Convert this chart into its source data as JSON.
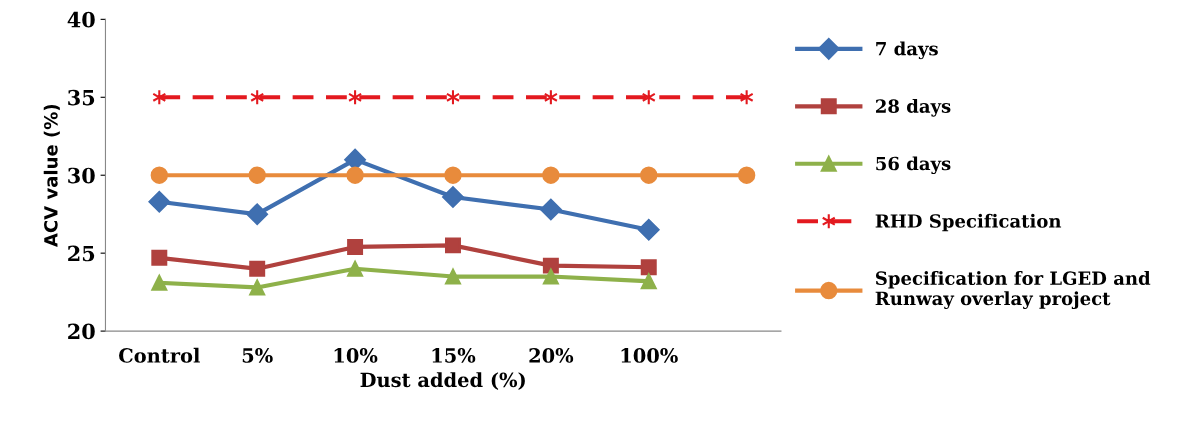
{
  "chart_data": {
    "type": "line",
    "xlabel": "Dust added (%)",
    "ylabel": "ACV value (%)",
    "categories": [
      "Control",
      "5%",
      "10%",
      "15%",
      "20%",
      "100%",
      null
    ],
    "series": [
      {
        "name": "7 days",
        "color": "#3f6fb0",
        "marker": "diamond",
        "line_style": "solid",
        "values": [
          28.3,
          27.5,
          31.0,
          28.6,
          27.8,
          26.5,
          null
        ]
      },
      {
        "name": "28 days",
        "color": "#b0413e",
        "marker": "square",
        "line_style": "solid",
        "values": [
          24.7,
          24.0,
          25.4,
          25.5,
          24.2,
          24.1,
          null
        ]
      },
      {
        "name": "56 days",
        "color": "#8eb14a",
        "marker": "triangle",
        "line_style": "solid",
        "values": [
          23.1,
          22.8,
          24.0,
          23.5,
          23.5,
          23.2,
          null
        ]
      },
      {
        "name": "RHD Specification",
        "color": "#e3191f",
        "marker": "cross",
        "line_style": "dashed",
        "values": [
          35,
          35,
          35,
          35,
          35,
          35,
          35
        ]
      },
      {
        "name": "Specification for LGED and Runway overlay project",
        "color": "#e88b3c",
        "marker": "circle",
        "line_style": "solid",
        "values": [
          30,
          30,
          30,
          30,
          30,
          30,
          30
        ]
      }
    ],
    "ylim": [
      20,
      40
    ],
    "yticks": [
      20,
      25,
      30,
      35,
      40
    ],
    "legend": "right",
    "grid": false
  }
}
